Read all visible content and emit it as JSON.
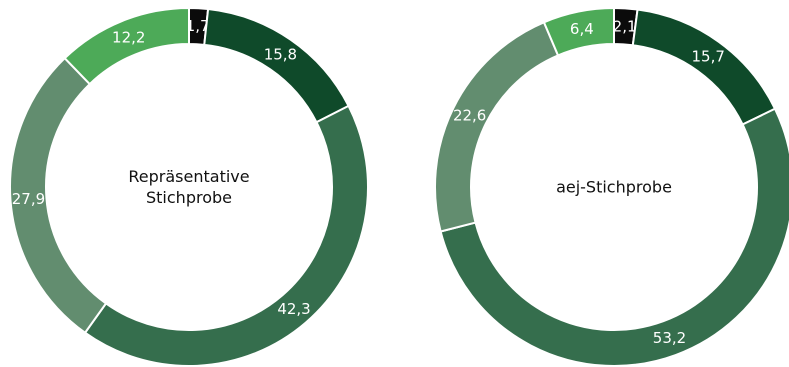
{
  "chart_data": [
    {
      "type": "pie",
      "title_lines": [
        "Repräsentative",
        "Stichprobe"
      ],
      "slices": [
        {
          "value": 1.7,
          "label": "1,7",
          "color": "#0b0b0b"
        },
        {
          "value": 15.8,
          "label": "15,8",
          "color": "#0f4a2a"
        },
        {
          "value": 42.3,
          "label": "42,3",
          "color": "#356e4d"
        },
        {
          "value": 27.9,
          "label": "27,9",
          "color": "#628d6f"
        },
        {
          "value": 12.2,
          "label": "12,2",
          "color": "#4daa58"
        }
      ]
    },
    {
      "type": "pie",
      "title_lines": [
        "aej-Stichprobe"
      ],
      "slices": [
        {
          "value": 2.1,
          "label": "2,1",
          "color": "#0b0b0b"
        },
        {
          "value": 15.7,
          "label": "15,7",
          "color": "#0f4a2a"
        },
        {
          "value": 53.2,
          "label": "53,2",
          "color": "#356e4d"
        },
        {
          "value": 22.6,
          "label": "22,6",
          "color": "#628d6f"
        },
        {
          "value": 6.4,
          "label": "6,4",
          "color": "#4daa58"
        }
      ]
    }
  ]
}
